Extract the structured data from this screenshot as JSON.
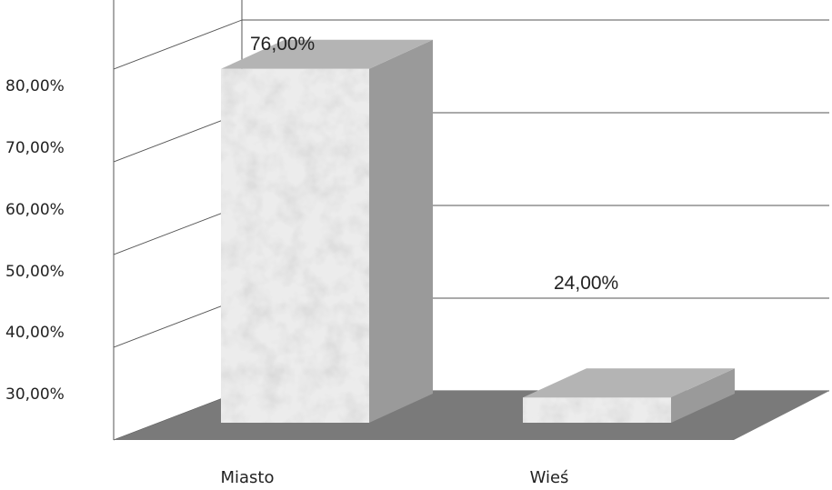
{
  "chart_data": {
    "type": "bar",
    "style": "3d-column",
    "categories": [
      "Miasto",
      "Wieś"
    ],
    "values": [
      76.0,
      24.0
    ],
    "data_labels": [
      "76,00%",
      "24,00%"
    ],
    "y_tick_labels": [
      "30,00%",
      "40,00%",
      "50,00%",
      "60,00%",
      "70,00%",
      "80,00%"
    ],
    "y_ticks": [
      30,
      40,
      50,
      60,
      70,
      80
    ],
    "grid": true,
    "legend": "none",
    "colors": {
      "bar_front": "#ececec",
      "bar_side": "#9a9a9a",
      "bar_top": "#b4b4b4",
      "floor": "#7a7a7a",
      "grid": "#555555"
    }
  }
}
